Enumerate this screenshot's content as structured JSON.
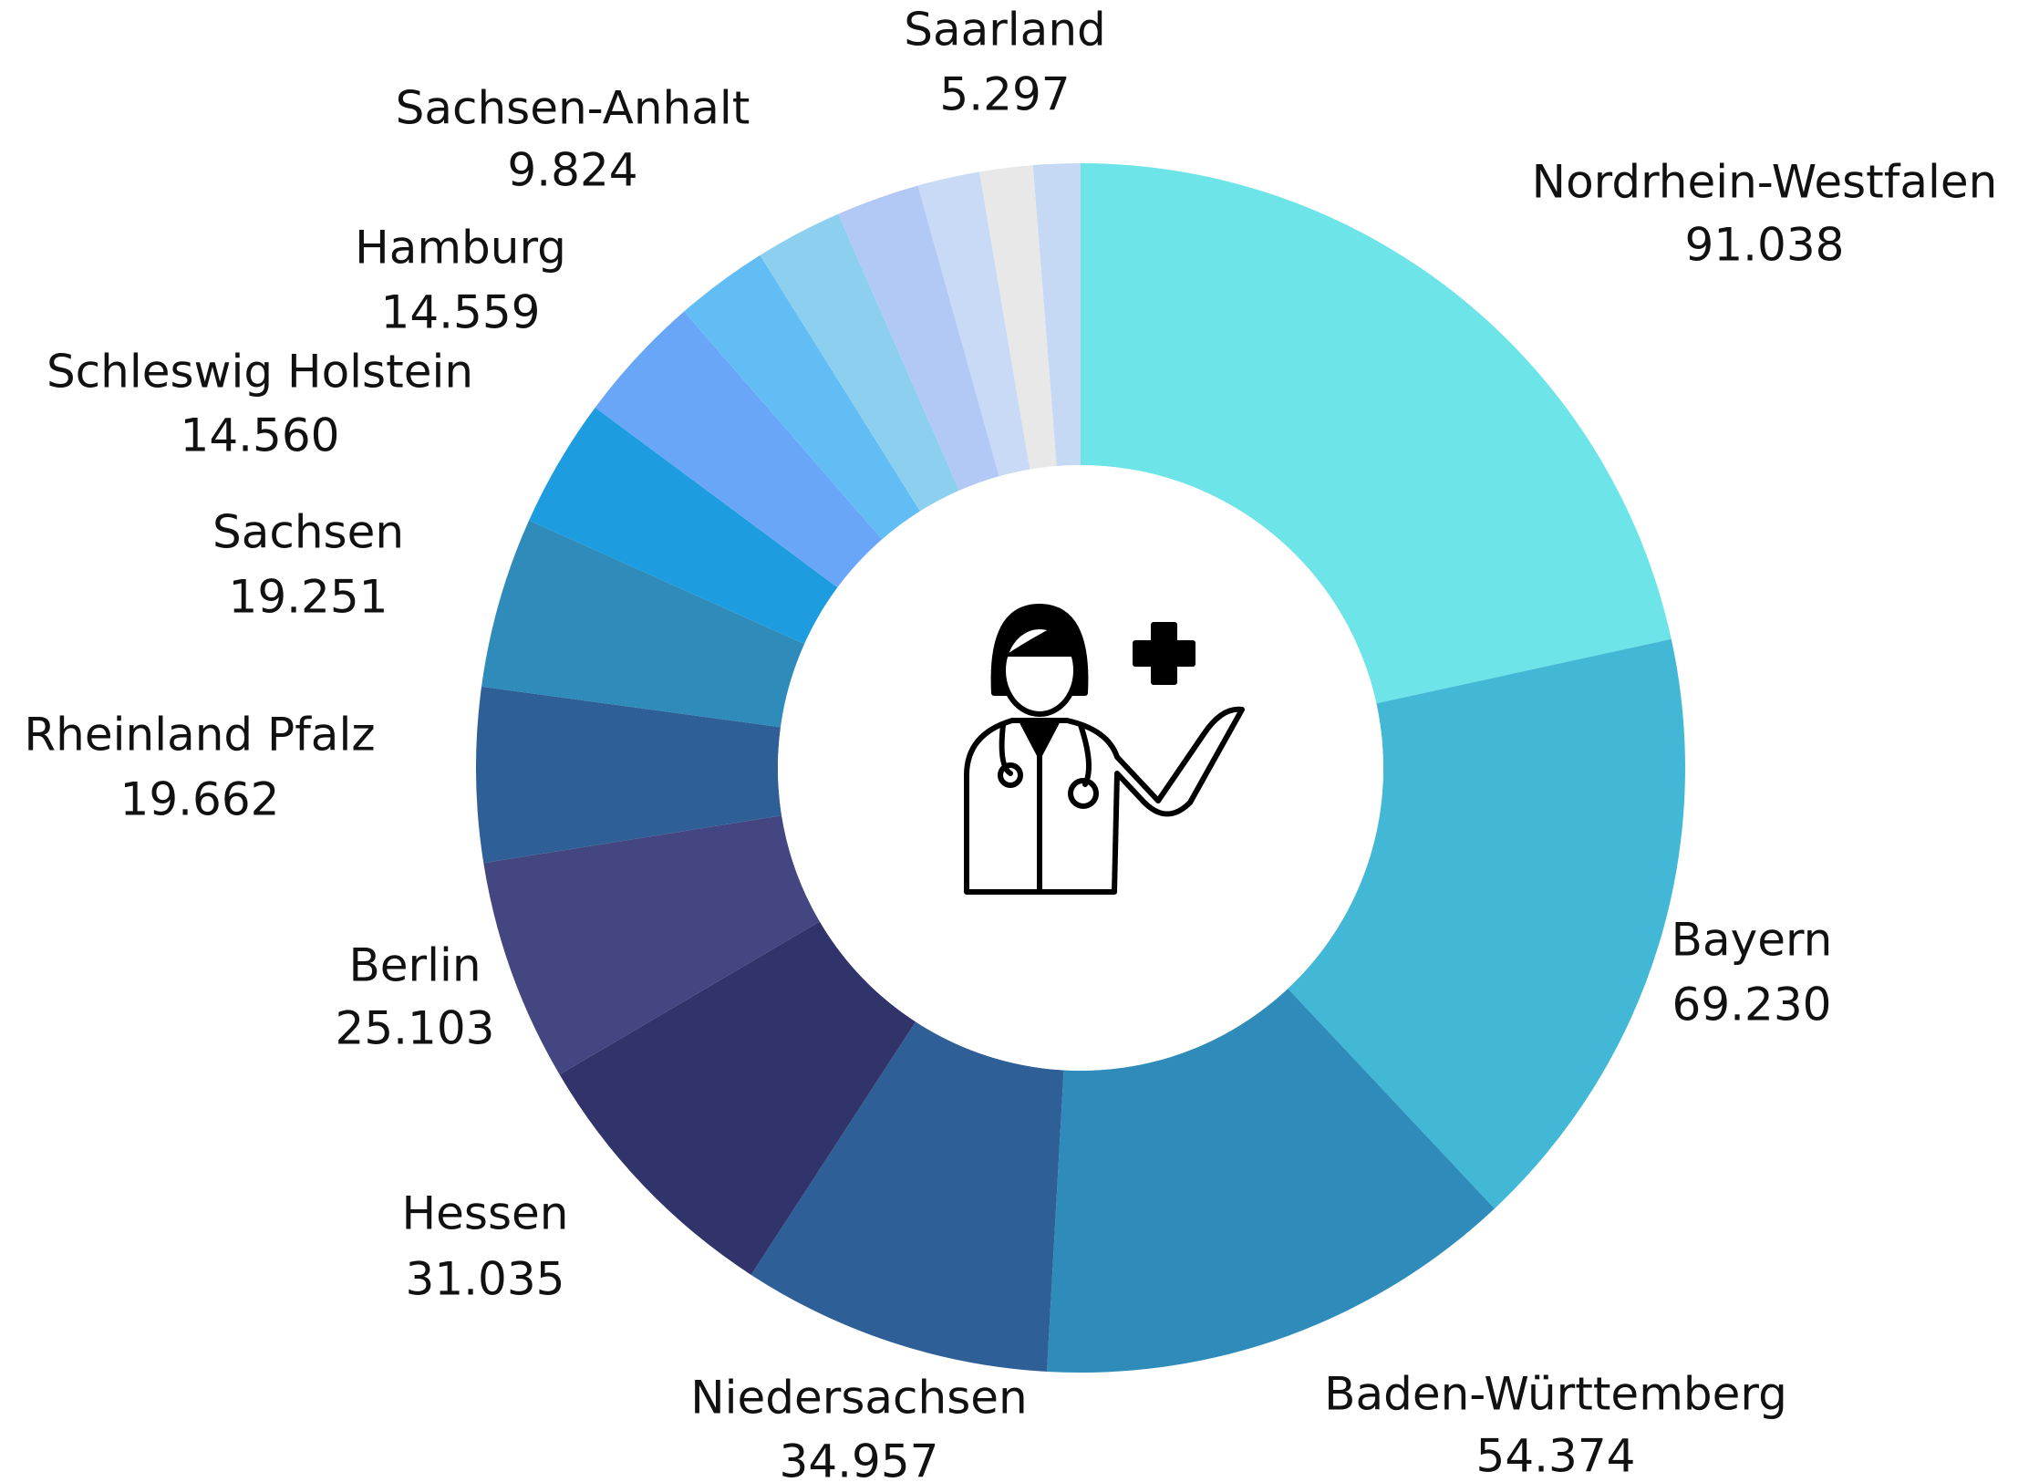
{
  "chart_data": {
    "type": "pie",
    "donut": true,
    "categories": [
      "Nordrhein-Westfalen",
      "Bayern",
      "Baden-Württemberg",
      "Niedersachsen",
      "Hessen",
      "Berlin",
      "Rheinland Pfalz",
      "Sachsen",
      "Schleswig Holstein",
      "Hamburg",
      null,
      "Sachsen-Anhalt",
      null,
      null,
      null,
      "Saarland"
    ],
    "values": [
      91038,
      69230,
      54374,
      34957,
      31035,
      25103,
      19662,
      19251,
      14560,
      14559,
      10500,
      9824,
      9400,
      7000,
      6000,
      5297
    ],
    "value_labels": [
      "91.038",
      "69.230",
      "54.374",
      "34.957",
      "31.035",
      "25.103",
      "19.662",
      "19.251",
      "14.560",
      "14.559",
      null,
      "9.824",
      null,
      null,
      null,
      "5.297"
    ],
    "colors": [
      "#6ce4e8",
      "#43b7d6",
      "#2e8bba",
      "#2e5f97",
      "#31336b",
      "#434681",
      "#2e5f97",
      "#2e8bba",
      "#1d9de0",
      "#6aa6f8",
      "#63bdf5",
      "#8ccfef",
      "#b2c8f5",
      "#c8daf5",
      "#e8e8e8",
      "#c5d9f5"
    ]
  }
}
